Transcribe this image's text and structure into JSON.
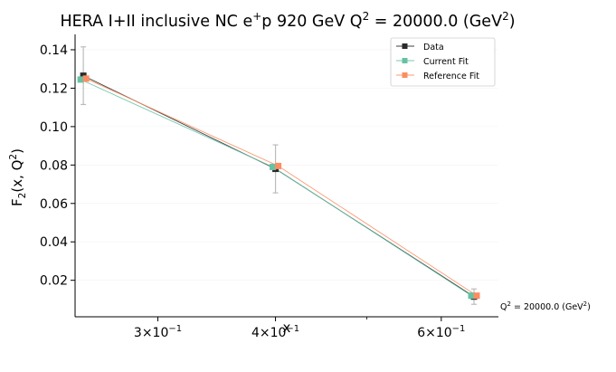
{
  "chart_data": {
    "type": "scatter",
    "title_main": "HERA I+II inclusive NC e",
    "title_sup1": "+",
    "title_mid": "p 920 GeV Q",
    "title_sup2": "2",
    "title_end": " = 20000.0 (GeV",
    "title_sup3": "2",
    "title_close": ")",
    "xlabel": "x",
    "xscale": "log",
    "ylabel_main": "F",
    "ylabel_sub": "2",
    "ylabel_args": "(x, Q",
    "ylabel_sup": "2",
    "ylabel_close": ")",
    "xlim": [
      0.245,
      0.69
    ],
    "ylim": [
      0.001,
      0.148
    ],
    "xticks": [
      {
        "value": 0.3,
        "mant": "3",
        "exp": "−1"
      },
      {
        "value": 0.4,
        "mant": "4",
        "exp": "−1"
      },
      {
        "value": 0.6,
        "mant": "6",
        "exp": "−1"
      }
    ],
    "x_times": "×10",
    "yticks": [
      {
        "value": 0.02,
        "label": "0.02"
      },
      {
        "value": 0.04,
        "label": "0.04"
      },
      {
        "value": 0.06,
        "label": "0.06"
      },
      {
        "value": 0.08,
        "label": "0.08"
      },
      {
        "value": 0.1,
        "label": "0.10"
      },
      {
        "value": 0.12,
        "label": "0.12"
      },
      {
        "value": 0.14,
        "label": "0.14"
      }
    ],
    "legend_position": "top-right",
    "series": [
      {
        "name": "Data",
        "color": "#2b2b2b",
        "x": [
          0.25,
          0.4,
          0.65
        ],
        "y": [
          0.1265,
          0.078,
          0.0115
        ],
        "yerr": [
          0.015,
          0.0125,
          0.004
        ]
      },
      {
        "name": "Current Fit",
        "color": "#66c2a5",
        "x": [
          0.25,
          0.4,
          0.65
        ],
        "y": [
          0.1245,
          0.079,
          0.012
        ]
      },
      {
        "name": "Reference Fit",
        "color": "#fc8d62",
        "x": [
          0.25,
          0.4,
          0.65
        ],
        "y": [
          0.125,
          0.0795,
          0.012
        ]
      }
    ],
    "annotation": {
      "main": "Q",
      "sup": "2",
      "rest": " = 20000.0 (GeV",
      "sup2": "2",
      "close": ")"
    }
  }
}
